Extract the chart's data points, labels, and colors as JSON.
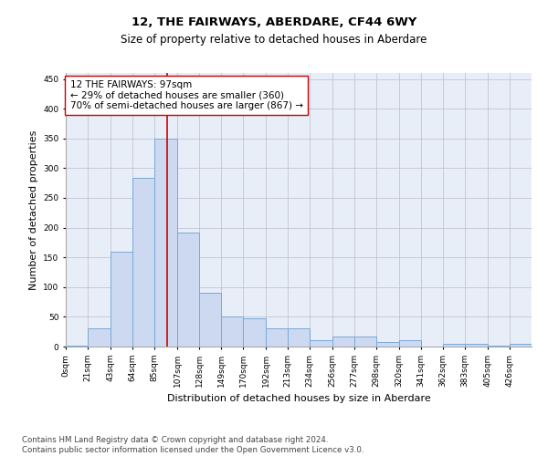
{
  "title": "12, THE FAIRWAYS, ABERDARE, CF44 6WY",
  "subtitle": "Size of property relative to detached houses in Aberdare",
  "xlabel": "Distribution of detached houses by size in Aberdare",
  "ylabel": "Number of detached properties",
  "footer_line1": "Contains HM Land Registry data © Crown copyright and database right 2024.",
  "footer_line2": "Contains public sector information licensed under the Open Government Licence v3.0.",
  "bin_labels": [
    "0sqm",
    "21sqm",
    "43sqm",
    "64sqm",
    "85sqm",
    "107sqm",
    "128sqm",
    "149sqm",
    "170sqm",
    "192sqm",
    "213sqm",
    "234sqm",
    "256sqm",
    "277sqm",
    "298sqm",
    "320sqm",
    "341sqm",
    "362sqm",
    "383sqm",
    "405sqm",
    "426sqm"
  ],
  "bin_edges": [
    0,
    21,
    43,
    64,
    85,
    107,
    128,
    149,
    170,
    192,
    213,
    234,
    256,
    277,
    298,
    320,
    341,
    362,
    383,
    405,
    426,
    447
  ],
  "bar_heights": [
    2,
    30,
    160,
    283,
    350,
    192,
    90,
    50,
    48,
    30,
    30,
    10,
    17,
    17,
    8,
    10,
    0,
    5,
    5,
    2,
    5
  ],
  "bar_facecolor": "#ccd9f0",
  "bar_edgecolor": "#7aa8d8",
  "grid_color": "#bbbbcc",
  "bg_color": "#e8eef8",
  "property_line_x": 97,
  "property_line_color": "#cc0000",
  "annotation_text": "12 THE FAIRWAYS: 97sqm\n← 29% of detached houses are smaller (360)\n70% of semi-detached houses are larger (867) →",
  "annotation_box_edgecolor": "#cc0000",
  "annotation_box_facecolor": "#ffffff",
  "ylim": [
    0,
    460
  ],
  "yticks": [
    0,
    50,
    100,
    150,
    200,
    250,
    300,
    350,
    400,
    450
  ],
  "title_fontsize": 9.5,
  "subtitle_fontsize": 8.5,
  "axis_label_fontsize": 8,
  "tick_fontsize": 6.5,
  "annotation_fontsize": 7.5,
  "footer_fontsize": 6.2,
  "ylabel_fontsize": 8
}
